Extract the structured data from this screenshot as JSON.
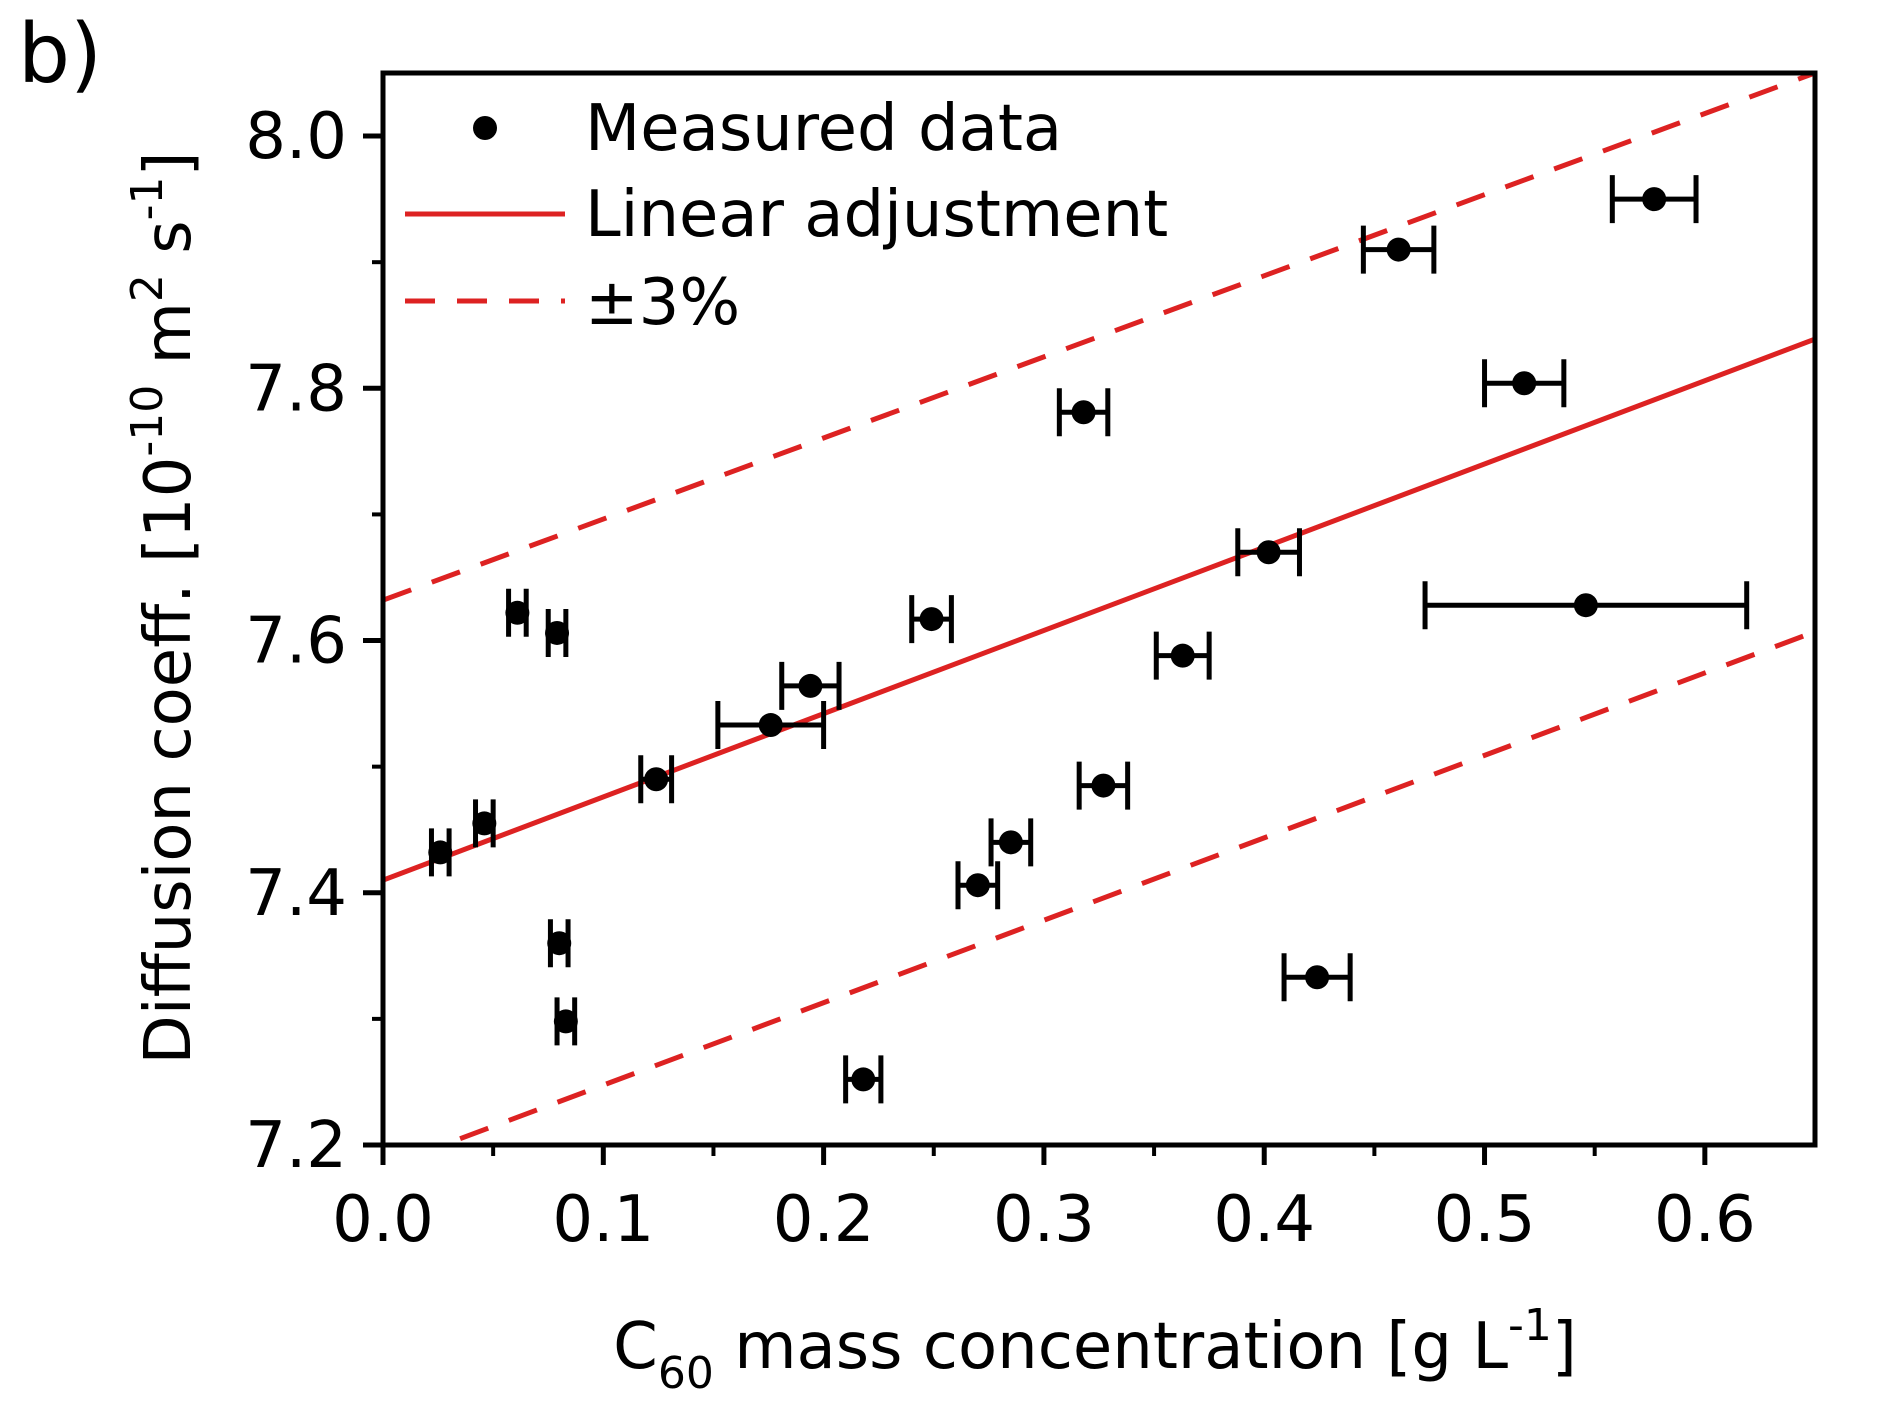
{
  "chart_data": {
    "type": "scatter",
    "panel_label": "b)",
    "xlabel": {
      "main": "C",
      "sub": "60",
      "rest": " mass concentration [g L",
      "sup": "-1",
      "end": "]"
    },
    "ylabel": {
      "main": "Diffusion coeff. [10",
      "sup1": "-10",
      "mid": " m",
      "sup2": "2",
      "mid2": " s",
      "sup3": "-1",
      "end": "]"
    },
    "xlim": [
      0.0,
      0.65
    ],
    "ylim": [
      7.2,
      8.05
    ],
    "x_ticks": [
      {
        "value": 0.0,
        "label": "0.0"
      },
      {
        "value": 0.1,
        "label": "0.1"
      },
      {
        "value": 0.2,
        "label": "0.2"
      },
      {
        "value": 0.3,
        "label": "0.3"
      },
      {
        "value": 0.4,
        "label": "0.4"
      },
      {
        "value": 0.5,
        "label": "0.5"
      },
      {
        "value": 0.6,
        "label": "0.6"
      }
    ],
    "y_ticks": [
      {
        "value": 7.2,
        "label": "7.2"
      },
      {
        "value": 7.4,
        "label": "7.4"
      },
      {
        "value": 7.6,
        "label": "7.6"
      },
      {
        "value": 7.8,
        "label": "7.8"
      },
      {
        "value": 8.0,
        "label": "8.0"
      }
    ],
    "y_minor_ticks": [
      7.3,
      7.5,
      7.7,
      7.9
    ],
    "x_minor_ticks": [
      0.05,
      0.15,
      0.25,
      0.35,
      0.45,
      0.55
    ],
    "colors": {
      "data": "#000000",
      "fit": "#dd2222"
    },
    "legend": {
      "position": "top-left",
      "entries": [
        {
          "label": "Measured data",
          "style": "marker"
        },
        {
          "label": "Linear adjustment",
          "style": "solid"
        },
        {
          "label": "±3%",
          "style": "dashed"
        }
      ]
    },
    "series": [
      {
        "name": "Measured data",
        "points": [
          {
            "x": 0.026,
            "y": 7.432,
            "xerr": 0.004
          },
          {
            "x": 0.046,
            "y": 7.455,
            "xerr": 0.004
          },
          {
            "x": 0.061,
            "y": 7.622,
            "xerr": 0.004
          },
          {
            "x": 0.079,
            "y": 7.606,
            "xerr": 0.004
          },
          {
            "x": 0.08,
            "y": 7.36,
            "xerr": 0.004
          },
          {
            "x": 0.083,
            "y": 7.298,
            "xerr": 0.004
          },
          {
            "x": 0.124,
            "y": 7.49,
            "xerr": 0.007
          },
          {
            "x": 0.176,
            "y": 7.533,
            "xerr": 0.024
          },
          {
            "x": 0.194,
            "y": 7.564,
            "xerr": 0.013
          },
          {
            "x": 0.218,
            "y": 7.252,
            "xerr": 0.008
          },
          {
            "x": 0.249,
            "y": 7.617,
            "xerr": 0.009
          },
          {
            "x": 0.27,
            "y": 7.406,
            "xerr": 0.009
          },
          {
            "x": 0.285,
            "y": 7.44,
            "xerr": 0.009
          },
          {
            "x": 0.318,
            "y": 7.781,
            "xerr": 0.011
          },
          {
            "x": 0.327,
            "y": 7.485,
            "xerr": 0.011
          },
          {
            "x": 0.363,
            "y": 7.588,
            "xerr": 0.012
          },
          {
            "x": 0.402,
            "y": 7.67,
            "xerr": 0.014
          },
          {
            "x": 0.424,
            "y": 7.333,
            "xerr": 0.015
          },
          {
            "x": 0.461,
            "y": 7.91,
            "xerr": 0.016
          },
          {
            "x": 0.518,
            "y": 7.804,
            "xerr": 0.018
          },
          {
            "x": 0.546,
            "y": 7.628,
            "xerr": 0.073
          },
          {
            "x": 0.577,
            "y": 7.95,
            "xerr": 0.019
          }
        ]
      },
      {
        "name": "Linear adjustment",
        "type": "line",
        "intercept": 7.41,
        "slope": 0.66,
        "x_range": [
          0.0,
          0.65
        ]
      },
      {
        "name": "±3%",
        "type": "dashed",
        "lines": [
          {
            "which": "upper",
            "points": [
              [
                0.0,
                7.632
              ],
              [
                0.65,
                8.05
              ]
            ]
          },
          {
            "which": "lower",
            "points": [
              [
                0.035,
                7.205
              ],
              [
                0.65,
                7.607
              ]
            ]
          }
        ]
      }
    ]
  }
}
